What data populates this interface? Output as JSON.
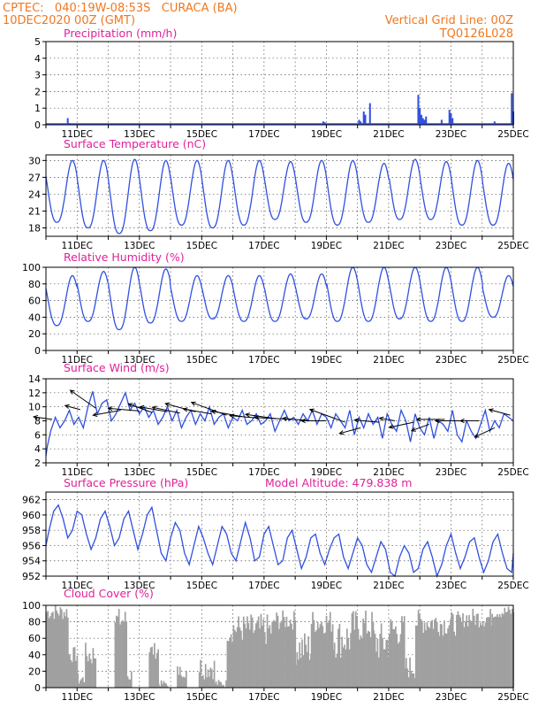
{
  "header": {
    "line1_left": "CPTEC:   040:19W-08:53S   CURACA (BA)",
    "line2_left": "10DEC2020 00Z (GMT)",
    "line1_right": "Vertical Grid Line: 00Z",
    "line2_right": "TQ0126L028"
  },
  "colors": {
    "header": "#f07820",
    "title": "#e0209a",
    "line": "#3050e0",
    "cloud": "#a0a0a0",
    "wind": "#000000"
  },
  "x_axis": {
    "start_day": 10,
    "end_day": 25,
    "tick_labels": [
      "11DEC",
      "13DEC",
      "15DEC",
      "17DEC",
      "19DEC",
      "21DEC",
      "23DEC",
      "25DEC"
    ]
  },
  "chart_data": [
    {
      "type": "bar",
      "title": "Precipitation (mm/h)",
      "ylim": [
        0,
        5
      ],
      "yticks": [
        0,
        1,
        2,
        3,
        4,
        5
      ],
      "bars": [
        {
          "x": 10.7,
          "value": 0.4
        },
        {
          "x": 10.75,
          "value": 0.1
        },
        {
          "x": 18.9,
          "value": 0.2
        },
        {
          "x": 18.95,
          "value": 0.15
        },
        {
          "x": 20.05,
          "value": 0.3
        },
        {
          "x": 20.1,
          "value": 0.2
        },
        {
          "x": 20.2,
          "value": 0.8
        },
        {
          "x": 20.25,
          "value": 0.6
        },
        {
          "x": 20.4,
          "value": 1.3
        },
        {
          "x": 21.95,
          "value": 1.8
        },
        {
          "x": 22.0,
          "value": 1.0
        },
        {
          "x": 22.05,
          "value": 0.6
        },
        {
          "x": 22.1,
          "value": 0.4
        },
        {
          "x": 22.15,
          "value": 0.3
        },
        {
          "x": 22.2,
          "value": 0.5
        },
        {
          "x": 22.7,
          "value": 0.3
        },
        {
          "x": 22.95,
          "value": 0.9
        },
        {
          "x": 23.0,
          "value": 0.7
        },
        {
          "x": 23.05,
          "value": 0.4
        },
        {
          "x": 24.4,
          "value": 0.2
        },
        {
          "x": 24.95,
          "value": 1.9
        },
        {
          "x": 25.0,
          "value": 0.8
        }
      ]
    },
    {
      "type": "line",
      "title": "Surface Temperature (nC)",
      "ylim": [
        16.5,
        31
      ],
      "yticks": [
        18,
        21,
        24,
        27,
        30
      ],
      "daily_max": [
        30.0,
        30.0,
        30.2,
        30.0,
        30.0,
        30.0,
        30.0,
        29.8,
        30.0,
        30.0,
        29.5,
        30.2,
        29.8,
        30.0,
        29.5,
        29.8
      ],
      "daily_min": [
        19.0,
        18.0,
        17.0,
        17.5,
        18.5,
        18.0,
        18.5,
        19.5,
        19.0,
        18.5,
        19.0,
        19.5,
        19.5,
        18.5,
        18.5,
        19.0
      ]
    },
    {
      "type": "line",
      "title": "Relative Humidity (%)",
      "ylim": [
        0,
        100
      ],
      "yticks": [
        0,
        20,
        40,
        60,
        80,
        100
      ],
      "daily_max": [
        90,
        95,
        100,
        98,
        90,
        90,
        90,
        92,
        92,
        100,
        100,
        100,
        100,
        100,
        90,
        95
      ],
      "daily_min": [
        30,
        35,
        25,
        33,
        35,
        38,
        35,
        35,
        38,
        35,
        35,
        38,
        35,
        35,
        40,
        40
      ]
    },
    {
      "type": "line",
      "title": "Surface Wind (m/s)",
      "ylim": [
        2,
        14
      ],
      "yticks": [
        2,
        4,
        6,
        8,
        10,
        12,
        14
      ],
      "x": [
        10.0,
        10.05,
        10.15,
        10.3,
        10.45,
        10.6,
        10.75,
        10.9,
        11.05,
        11.2,
        11.35,
        11.5,
        11.65,
        11.8,
        11.95,
        12.1,
        12.25,
        12.4,
        12.55,
        12.7,
        12.85,
        13.0,
        13.15,
        13.3,
        13.45,
        13.6,
        13.75,
        13.9,
        14.05,
        14.2,
        14.35,
        14.5,
        14.65,
        14.8,
        14.95,
        15.1,
        15.25,
        15.4,
        15.55,
        15.7,
        15.85,
        16.0,
        16.15,
        16.3,
        16.45,
        16.6,
        16.75,
        16.9,
        17.05,
        17.2,
        17.35,
        17.5,
        17.65,
        17.8,
        17.95,
        18.1,
        18.25,
        18.4,
        18.55,
        18.7,
        18.85,
        19.0,
        19.15,
        19.3,
        19.45,
        19.6,
        19.75,
        19.9,
        20.05,
        20.2,
        20.35,
        20.5,
        20.65,
        20.8,
        20.95,
        21.1,
        21.25,
        21.4,
        21.55,
        21.7,
        21.85,
        22.0,
        22.15,
        22.3,
        22.45,
        22.6,
        22.75,
        22.9,
        23.05,
        23.2,
        23.35,
        23.5,
        23.65,
        23.8,
        23.95,
        24.1,
        24.25,
        24.4,
        24.55,
        24.7,
        24.85,
        25.0
      ],
      "values": [
        3.0,
        4.5,
        6.5,
        8.5,
        7.0,
        8.0,
        9.5,
        7.5,
        8.5,
        7.0,
        10.0,
        12.2,
        9.0,
        10.5,
        11.0,
        8.0,
        9.0,
        10.5,
        12.0,
        9.5,
        10.5,
        9.0,
        10.0,
        8.5,
        9.5,
        7.5,
        8.5,
        10.0,
        8.0,
        9.5,
        7.0,
        8.5,
        9.5,
        7.5,
        9.0,
        8.0,
        10.0,
        7.5,
        8.5,
        9.0,
        7.0,
        8.5,
        8.0,
        9.5,
        7.5,
        8.0,
        9.0,
        7.5,
        8.0,
        9.0,
        6.5,
        8.0,
        9.5,
        8.0,
        8.5,
        7.5,
        9.0,
        8.0,
        9.5,
        7.5,
        9.0,
        8.5,
        7.0,
        9.0,
        8.0,
        7.0,
        9.5,
        6.0,
        8.5,
        7.0,
        9.0,
        7.5,
        8.5,
        5.5,
        9.0,
        7.5,
        6.5,
        9.5,
        8.0,
        5.0,
        9.0,
        7.0,
        6.0,
        8.5,
        5.5,
        8.0,
        7.5,
        6.5,
        9.5,
        6.0,
        5.0,
        8.0,
        6.5,
        5.5,
        7.5,
        9.5,
        6.5,
        8.0,
        7.0,
        9.0,
        8.5,
        8.0
      ],
      "vectors": [
        {
          "x": 10.2,
          "mag": 8.2,
          "len": 0.6,
          "ang": 8
        },
        {
          "x": 11.1,
          "mag": 9.6,
          "len": 0.5,
          "ang": 15
        },
        {
          "x": 11.6,
          "mag": 9.8,
          "len": 1.0,
          "ang": 35
        },
        {
          "x": 12.4,
          "mag": 9.5,
          "len": 0.9,
          "ang": -10
        },
        {
          "x": 13.0,
          "mag": 9.4,
          "len": 1.0,
          "ang": 5
        },
        {
          "x": 13.4,
          "mag": 9.2,
          "len": 0.8,
          "ang": 20
        },
        {
          "x": 13.9,
          "mag": 9.3,
          "len": 0.9,
          "ang": 10
        },
        {
          "x": 14.3,
          "mag": 9.1,
          "len": 0.9,
          "ang": 12
        },
        {
          "x": 14.8,
          "mag": 9.3,
          "len": 1.0,
          "ang": 15
        },
        {
          "x": 15.3,
          "mag": 9.0,
          "len": 0.9,
          "ang": 10
        },
        {
          "x": 15.8,
          "mag": 8.8,
          "len": 1.2,
          "ang": 20
        },
        {
          "x": 16.3,
          "mag": 8.6,
          "len": 1.0,
          "ang": 10
        },
        {
          "x": 16.8,
          "mag": 8.4,
          "len": 0.9,
          "ang": 5
        },
        {
          "x": 17.4,
          "mag": 8.3,
          "len": 1.0,
          "ang": 8
        },
        {
          "x": 17.9,
          "mag": 8.2,
          "len": 1.2,
          "ang": 3
        },
        {
          "x": 18.5,
          "mag": 8.0,
          "len": 0.9,
          "ang": 5
        },
        {
          "x": 19.0,
          "mag": 8.0,
          "len": 0.8,
          "ang": 0
        },
        {
          "x": 19.6,
          "mag": 7.8,
          "len": 1.2,
          "ang": 20
        },
        {
          "x": 20.1,
          "mag": 7.0,
          "len": 0.7,
          "ang": -15
        },
        {
          "x": 20.7,
          "mag": 7.8,
          "len": 0.8,
          "ang": 5
        },
        {
          "x": 21.2,
          "mag": 8.0,
          "len": 0.5,
          "ang": 10
        },
        {
          "x": 21.8,
          "mag": 7.8,
          "len": 0.8,
          "ang": -12
        },
        {
          "x": 22.3,
          "mag": 7.5,
          "len": 0.6,
          "ang": -20
        },
        {
          "x": 22.8,
          "mag": 8.2,
          "len": 0.9,
          "ang": 0
        },
        {
          "x": 23.4,
          "mag": 8.0,
          "len": 0.9,
          "ang": 0
        },
        {
          "x": 23.9,
          "mag": 8.0,
          "len": 0.6,
          "ang": 0
        },
        {
          "x": 24.4,
          "mag": 7.0,
          "len": 0.7,
          "ang": -25
        },
        {
          "x": 24.9,
          "mag": 8.8,
          "len": 0.7,
          "ang": 15
        }
      ]
    },
    {
      "type": "line",
      "title": "Surface Pressure (hPa)",
      "annotation": "Model Altitude: 479.838 m",
      "ylim": [
        952,
        963
      ],
      "yticks": [
        952,
        954,
        956,
        958,
        960,
        962
      ],
      "x": [
        10.0,
        10.1,
        10.25,
        10.4,
        10.55,
        10.7,
        10.85,
        11.0,
        11.15,
        11.3,
        11.45,
        11.6,
        11.75,
        11.9,
        12.05,
        12.2,
        12.35,
        12.5,
        12.65,
        12.8,
        12.95,
        13.1,
        13.25,
        13.4,
        13.55,
        13.7,
        13.85,
        14.0,
        14.15,
        14.3,
        14.45,
        14.6,
        14.75,
        14.9,
        15.05,
        15.2,
        15.35,
        15.5,
        15.65,
        15.8,
        15.95,
        16.1,
        16.25,
        16.4,
        16.55,
        16.7,
        16.85,
        17.0,
        17.15,
        17.3,
        17.45,
        17.6,
        17.75,
        17.9,
        18.05,
        18.2,
        18.35,
        18.5,
        18.65,
        18.8,
        18.95,
        19.1,
        19.25,
        19.4,
        19.55,
        19.7,
        19.85,
        20.0,
        20.15,
        20.3,
        20.45,
        20.6,
        20.75,
        20.9,
        21.05,
        21.2,
        21.35,
        21.5,
        21.65,
        21.8,
        21.95,
        22.1,
        22.25,
        22.4,
        22.55,
        22.7,
        22.85,
        23.0,
        23.15,
        23.3,
        23.45,
        23.6,
        23.75,
        23.9,
        24.05,
        24.2,
        24.35,
        24.5,
        24.65,
        24.8,
        24.95,
        25.0
      ],
      "values": [
        956.0,
        958.0,
        960.5,
        961.3,
        959.5,
        957.0,
        958.0,
        960.5,
        960.0,
        957.5,
        955.5,
        957.0,
        959.5,
        960.5,
        958.5,
        956.0,
        957.0,
        959.5,
        960.5,
        958.0,
        955.5,
        957.5,
        960.0,
        961.0,
        958.0,
        955.0,
        954.0,
        957.0,
        959.0,
        958.0,
        955.0,
        953.5,
        956.0,
        958.5,
        957.0,
        955.0,
        953.5,
        956.0,
        958.5,
        957.5,
        955.0,
        954.0,
        956.5,
        959.0,
        957.0,
        954.0,
        954.5,
        957.5,
        958.5,
        956.0,
        953.5,
        954.0,
        957.0,
        958.0,
        955.5,
        953.0,
        954.5,
        957.0,
        957.5,
        955.0,
        953.5,
        955.5,
        957.0,
        957.5,
        954.5,
        953.0,
        955.0,
        957.0,
        956.0,
        953.5,
        952.5,
        954.5,
        956.5,
        955.5,
        952.5,
        952.0,
        954.5,
        956.0,
        955.0,
        952.5,
        953.0,
        955.5,
        956.5,
        954.5,
        952.0,
        953.5,
        956.0,
        957.5,
        955.0,
        953.0,
        954.5,
        956.5,
        957.0,
        954.5,
        952.5,
        954.0,
        956.5,
        957.5,
        955.0,
        953.0,
        952.5,
        955.0
      ]
    },
    {
      "type": "area",
      "title": "Cloud Cover (%)",
      "ylim": [
        0,
        100
      ],
      "yticks": [
        0,
        20,
        40,
        60,
        80,
        100
      ],
      "segments": [
        {
          "from": 10.0,
          "to": 10.7,
          "level": 92,
          "var": 10
        },
        {
          "from": 10.7,
          "to": 11.0,
          "level": 40,
          "var": 10
        },
        {
          "from": 11.0,
          "to": 11.25,
          "level": 10,
          "var": 8
        },
        {
          "from": 11.25,
          "to": 11.6,
          "level": 40,
          "var": 15
        },
        {
          "from": 11.6,
          "to": 12.2,
          "level": 0,
          "var": 0
        },
        {
          "from": 12.2,
          "to": 12.6,
          "level": 82,
          "var": 15
        },
        {
          "from": 12.6,
          "to": 12.75,
          "level": 15,
          "var": 10
        },
        {
          "from": 12.75,
          "to": 13.3,
          "level": 0,
          "var": 0
        },
        {
          "from": 13.3,
          "to": 13.6,
          "level": 45,
          "var": 10
        },
        {
          "from": 13.6,
          "to": 13.9,
          "level": 5,
          "var": 4
        },
        {
          "from": 13.9,
          "to": 14.2,
          "level": 0,
          "var": 0
        },
        {
          "from": 14.2,
          "to": 14.5,
          "level": 20,
          "var": 8
        },
        {
          "from": 14.5,
          "to": 14.9,
          "level": 0,
          "var": 0
        },
        {
          "from": 14.9,
          "to": 15.4,
          "level": 25,
          "var": 15
        },
        {
          "from": 15.4,
          "to": 15.8,
          "level": 5,
          "var": 5
        },
        {
          "from": 15.8,
          "to": 16.6,
          "level": 72,
          "var": 18
        },
        {
          "from": 16.6,
          "to": 17.3,
          "level": 70,
          "var": 20
        },
        {
          "from": 17.3,
          "to": 18.0,
          "level": 82,
          "var": 12
        },
        {
          "from": 18.0,
          "to": 18.5,
          "level": 48,
          "var": 22
        },
        {
          "from": 18.5,
          "to": 19.2,
          "level": 80,
          "var": 15
        },
        {
          "from": 19.2,
          "to": 19.8,
          "level": 60,
          "var": 25
        },
        {
          "from": 19.8,
          "to": 20.5,
          "level": 75,
          "var": 20
        },
        {
          "from": 20.5,
          "to": 21.0,
          "level": 55,
          "var": 25
        },
        {
          "from": 21.0,
          "to": 21.5,
          "level": 70,
          "var": 20
        },
        {
          "from": 21.5,
          "to": 21.85,
          "level": 25,
          "var": 15
        },
        {
          "from": 21.85,
          "to": 22.6,
          "level": 80,
          "var": 15
        },
        {
          "from": 22.6,
          "to": 23.4,
          "level": 78,
          "var": 15
        },
        {
          "from": 23.4,
          "to": 24.3,
          "level": 85,
          "var": 12
        },
        {
          "from": 24.3,
          "to": 25.0,
          "level": 92,
          "var": 8
        }
      ]
    }
  ]
}
